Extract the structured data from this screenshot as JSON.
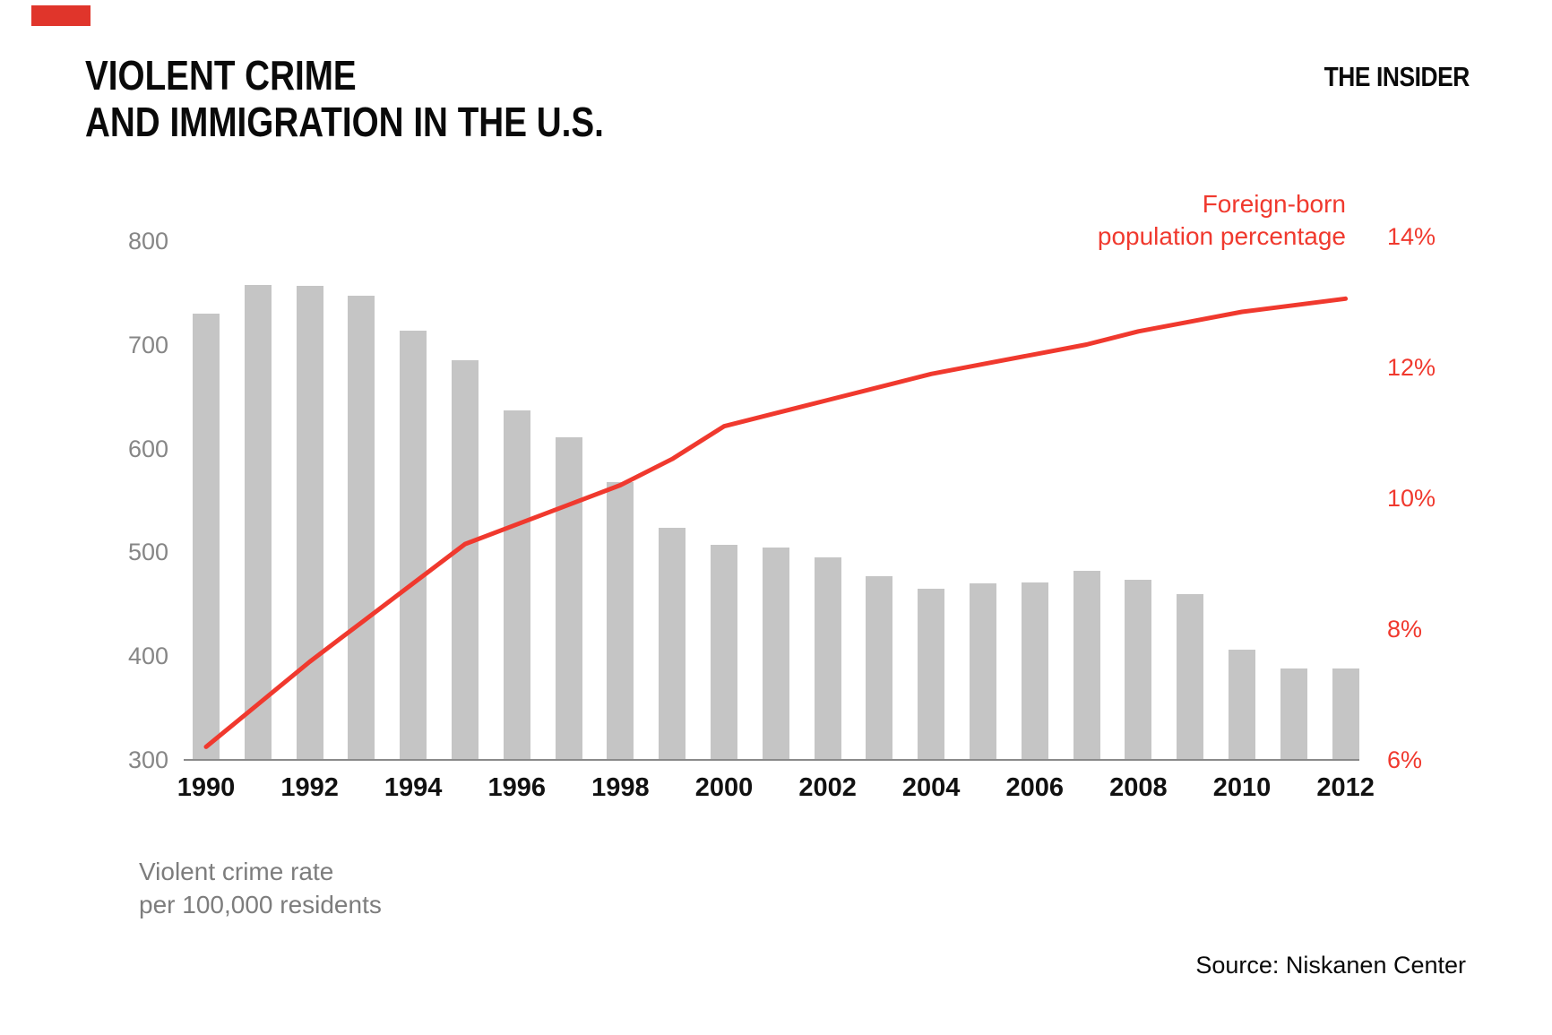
{
  "brand": {
    "name": "THE INSIDER"
  },
  "video_progress": {
    "color": "#e0352b"
  },
  "title": {
    "line1": "VIOLENT CRIME",
    "line2": "AND IMMIGRATION IN THE U.S."
  },
  "legend": {
    "line1": "Foreign-born",
    "line2": "population percentage"
  },
  "axis_note": {
    "line1": "Violent crime rate",
    "line2": "per 100,000 residents"
  },
  "source": "Source: Niskanen Center",
  "colors": {
    "bar": "#c5c5c5",
    "accent_red": "#f0392e",
    "axis_gray": "#8a8a8a",
    "left_tick_gray": "#868686"
  },
  "chart_data": {
    "type": "bar",
    "title": "Violent crime and immigration in the U.S.",
    "x": [
      1990,
      1991,
      1992,
      1993,
      1994,
      1995,
      1996,
      1997,
      1998,
      1999,
      2000,
      2001,
      2002,
      2003,
      2004,
      2005,
      2006,
      2007,
      2008,
      2009,
      2010,
      2011,
      2012
    ],
    "series": [
      {
        "name": "Violent crime rate per 100,000 residents",
        "type": "bar",
        "axis": "left",
        "values": [
          730,
          758,
          757,
          747,
          714,
          685,
          637,
          611,
          568,
          524,
          507,
          505,
          495,
          477,
          465,
          470,
          471,
          482,
          474,
          460,
          406,
          388,
          388
        ]
      },
      {
        "name": "Foreign-born population percentage",
        "type": "line",
        "axis": "right",
        "values": [
          6.2,
          6.85,
          7.5,
          8.1,
          8.7,
          9.3,
          9.6,
          9.9,
          10.2,
          10.6,
          11.1,
          11.3,
          11.5,
          11.7,
          11.9,
          12.05,
          12.2,
          12.35,
          12.55,
          12.7,
          12.85,
          12.95,
          13.05
        ]
      }
    ],
    "left_axis": {
      "label": "Violent crime rate per 100,000 residents",
      "min": 300,
      "max": 800,
      "ticks": [
        800,
        700,
        600,
        500,
        400,
        300
      ]
    },
    "right_axis": {
      "label": "Foreign-born population percentage",
      "min": 6,
      "max": 14,
      "ticks": [
        14,
        12,
        10,
        8,
        6
      ],
      "suffix": "%"
    },
    "x_ticks": [
      1990,
      1992,
      1994,
      1996,
      1998,
      2000,
      2002,
      2004,
      2006,
      2008,
      2010,
      2012
    ],
    "grid": false,
    "legend_position": "top-right"
  }
}
